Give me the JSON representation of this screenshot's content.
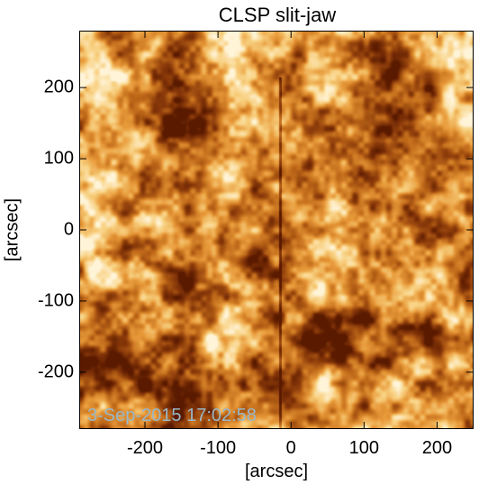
{
  "title": "CLSP slit-jaw",
  "timestamp": "3-Sep-2015 17:02:58",
  "x_axis": {
    "label": "[arcsec]",
    "range": [
      -290,
      250
    ],
    "ticks": [
      -200,
      -100,
      0,
      100,
      200
    ],
    "tick_labels": [
      "-200",
      "-100",
      "0",
      "100",
      "200"
    ]
  },
  "y_axis": {
    "label": "[arcsec]",
    "range": [
      -280,
      280
    ],
    "ticks": [
      200,
      100,
      0,
      -100,
      -200
    ],
    "tick_labels": [
      "200",
      "100",
      "0",
      "-100",
      "-200"
    ]
  },
  "image": {
    "colormap": [
      "#5a1a00",
      "#8a3a0a",
      "#c06a1a",
      "#e89a3a",
      "#f8d080",
      "#fff4d8"
    ],
    "slit_x_arcsec": -15
  }
}
